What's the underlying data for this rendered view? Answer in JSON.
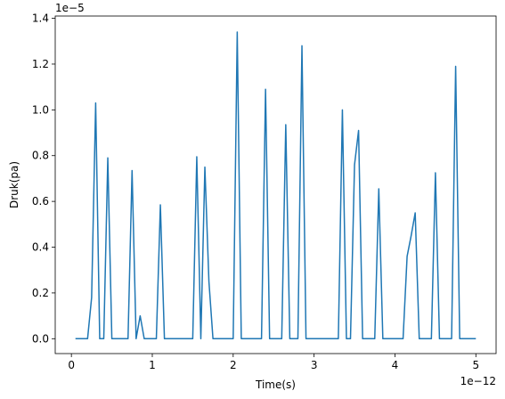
{
  "chart_data": {
    "type": "line",
    "xlabel": "Time(s)",
    "ylabel": "Druk(pa)",
    "x_offset_label": "1e−12",
    "y_offset_label": "1e−5",
    "xlim": [
      -0.2,
      5.25
    ],
    "ylim": [
      -0.065,
      1.41
    ],
    "xticks": [
      0,
      1,
      2,
      3,
      4,
      5
    ],
    "xtick_labels": [
      "0",
      "1",
      "2",
      "3",
      "4",
      "5"
    ],
    "yticks": [
      0.0,
      0.2,
      0.4,
      0.6,
      0.8,
      1.0,
      1.2,
      1.4
    ],
    "ytick_labels": [
      "0.0",
      "0.2",
      "0.4",
      "0.6",
      "0.8",
      "1.0",
      "1.2",
      "1.4"
    ],
    "grid": false,
    "line_color": "#1f77b4",
    "series": [
      {
        "x": [
          0.05,
          0.2,
          0.25,
          0.3,
          0.35,
          0.4,
          0.45,
          0.5,
          0.6,
          0.7,
          0.75,
          0.8,
          0.85,
          0.9,
          1.0,
          1.05,
          1.1,
          1.15,
          1.2,
          1.3,
          1.4,
          1.5,
          1.55,
          1.6,
          1.65,
          1.7,
          1.75,
          1.8,
          1.9,
          2.0,
          2.05,
          2.1,
          2.2,
          2.3,
          2.35,
          2.4,
          2.45,
          2.5,
          2.6,
          2.65,
          2.7,
          2.75,
          2.8,
          2.85,
          2.9,
          3.0,
          3.1,
          3.2,
          3.3,
          3.35,
          3.4,
          3.45,
          3.5,
          3.55,
          3.6,
          3.7,
          3.75,
          3.8,
          3.85,
          3.9,
          4.0,
          4.05,
          4.1,
          4.15,
          4.2,
          4.25,
          4.3,
          4.4,
          4.45,
          4.5,
          4.55,
          4.6,
          4.7,
          4.75,
          4.8,
          4.9,
          5.0
        ],
        "y": [
          0.0,
          0.0,
          0.18,
          1.03,
          0.0,
          0.0,
          0.79,
          0.0,
          0.0,
          0.0,
          0.735,
          0.0,
          0.1,
          0.0,
          0.0,
          0.0,
          0.585,
          0.0,
          0.0,
          0.0,
          0.0,
          0.0,
          0.795,
          0.0,
          0.75,
          0.25,
          0.0,
          0.0,
          0.0,
          0.0,
          1.34,
          0.0,
          0.0,
          0.0,
          0.0,
          1.09,
          0.0,
          0.0,
          0.0,
          0.935,
          0.0,
          0.0,
          0.0,
          1.28,
          0.0,
          0.0,
          0.0,
          0.0,
          0.0,
          1.0,
          0.0,
          0.0,
          0.76,
          0.91,
          0.0,
          0.0,
          0.0,
          0.655,
          0.0,
          0.0,
          0.0,
          0.0,
          0.0,
          0.36,
          0.45,
          0.55,
          0.0,
          0.0,
          0.0,
          0.725,
          0.0,
          0.0,
          0.0,
          1.19,
          0.0,
          0.0,
          0.0
        ]
      }
    ]
  }
}
